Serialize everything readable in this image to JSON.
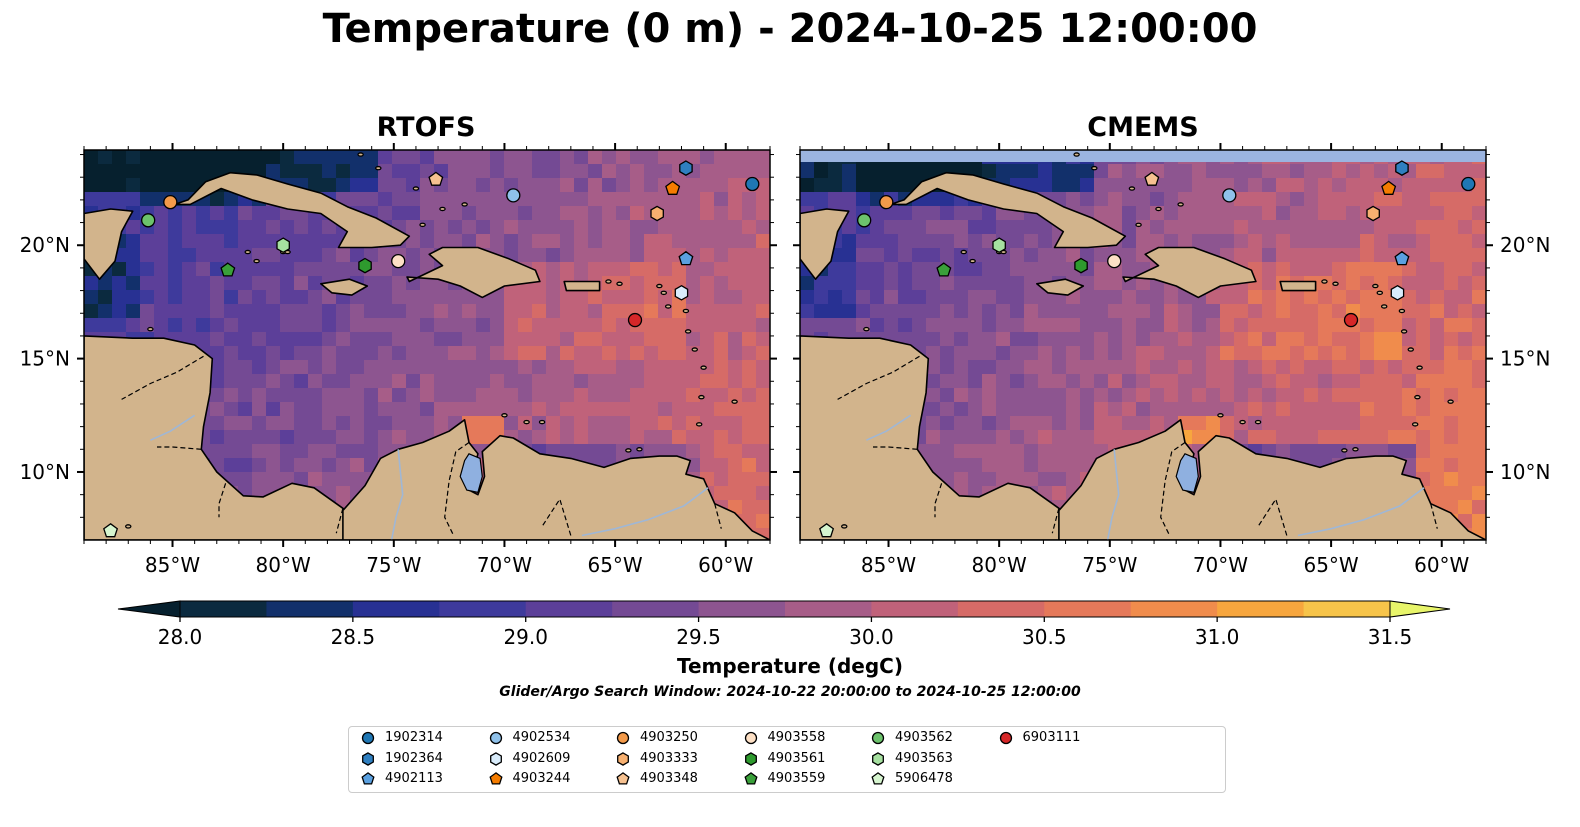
{
  "figure": {
    "title": "Temperature (0 m) - 2024-10-25 12:00:00",
    "search_window": "Glider/Argo Search Window: 2024-10-22 20:00:00 to 2024-10-25 12:00:00"
  },
  "panels": [
    {
      "title": "RTOFS",
      "lat_ticks_side": "left"
    },
    {
      "title": "CMEMS",
      "lat_ticks_side": "right"
    }
  ],
  "map_extent": {
    "lon": [
      -89,
      -58
    ],
    "lat": [
      7,
      24.2
    ]
  },
  "lon_ticks": [
    {
      "value": -85,
      "label": "85°W"
    },
    {
      "value": -80,
      "label": "80°W"
    },
    {
      "value": -75,
      "label": "75°W"
    },
    {
      "value": -70,
      "label": "70°W"
    },
    {
      "value": -65,
      "label": "65°W"
    },
    {
      "value": -60,
      "label": "60°W"
    }
  ],
  "lat_ticks": [
    {
      "value": 20,
      "label": "20°N"
    },
    {
      "value": 15,
      "label": "15°N"
    },
    {
      "value": 10,
      "label": "10°N"
    }
  ],
  "colorbar": {
    "label": "Temperature (degC)",
    "min": 28.0,
    "max": 31.5,
    "step": 0.25,
    "ticks": [
      "28.0",
      "28.5",
      "29.0",
      "29.5",
      "30.0",
      "30.5",
      "31.0",
      "31.5"
    ],
    "colors": [
      "#0b2a3f",
      "#12306b",
      "#283193",
      "#3e3a9c",
      "#5c3f99",
      "#744a94",
      "#8d5590",
      "#a75d88",
      "#c0627a",
      "#d66b67",
      "#e5795a",
      "#f08c4c",
      "#f7a63e",
      "#f7c44a"
    ],
    "under_color": "#06202e",
    "over_color": "#e8f56a"
  },
  "colors": {
    "land": "#d2b48c",
    "lake": "#8fb0e0",
    "river": "#9fb7d6",
    "cmems_nodata": "#9bb4e0"
  },
  "legend": {
    "items": [
      {
        "id": "1902314",
        "shape": "circle",
        "color": "#1f77b4"
      },
      {
        "id": "1902364",
        "shape": "hexagon",
        "color": "#2f7fc0"
      },
      {
        "id": "4902113",
        "shape": "pentagon",
        "color": "#5aa0e0"
      },
      {
        "id": "4902534",
        "shape": "circle",
        "color": "#8fc1ea"
      },
      {
        "id": "4902609",
        "shape": "hexagon",
        "color": "#d9ecfb"
      },
      {
        "id": "4903244",
        "shape": "pentagon",
        "color": "#f57c00"
      },
      {
        "id": "4903250",
        "shape": "circle",
        "color": "#f39a4a"
      },
      {
        "id": "4903333",
        "shape": "hexagon",
        "color": "#f7b070"
      },
      {
        "id": "4903348",
        "shape": "pentagon",
        "color": "#f6c190"
      },
      {
        "id": "4903558",
        "shape": "circle",
        "color": "#fde0c5"
      },
      {
        "id": "4903561",
        "shape": "hexagon",
        "color": "#2e9a2e"
      },
      {
        "id": "4903559",
        "shape": "pentagon",
        "color": "#3aa03a"
      },
      {
        "id": "4903562",
        "shape": "circle",
        "color": "#6cc26c"
      },
      {
        "id": "4903563",
        "shape": "hexagon",
        "color": "#a6e0a0"
      },
      {
        "id": "5906478",
        "shape": "pentagon",
        "color": "#d6f5cf"
      },
      {
        "id": "6903111",
        "shape": "circle",
        "color": "#d62728"
      }
    ]
  },
  "floats": [
    {
      "id": "1902314",
      "lon": -58.8,
      "lat": 22.7
    },
    {
      "id": "1902364",
      "lon": -61.8,
      "lat": 23.4
    },
    {
      "id": "4902113",
      "lon": -61.8,
      "lat": 19.4
    },
    {
      "id": "4902534",
      "lon": -69.6,
      "lat": 22.2
    },
    {
      "id": "4902609",
      "lon": -62.0,
      "lat": 17.9
    },
    {
      "id": "4903244",
      "lon": -62.4,
      "lat": 22.5
    },
    {
      "id": "4903250",
      "lon": -85.1,
      "lat": 21.9
    },
    {
      "id": "4903333",
      "lon": -63.1,
      "lat": 21.4
    },
    {
      "id": "4903348",
      "lon": -73.1,
      "lat": 22.9
    },
    {
      "id": "4903558",
      "lon": -74.8,
      "lat": 19.3
    },
    {
      "id": "4903561",
      "lon": -76.3,
      "lat": 19.1
    },
    {
      "id": "4903559",
      "lon": -82.5,
      "lat": 18.9
    },
    {
      "id": "4903562",
      "lon": -86.1,
      "lat": 21.1
    },
    {
      "id": "4903563",
      "lon": -80.0,
      "lat": 20.0
    },
    {
      "id": "5906478",
      "lon": -87.8,
      "lat": 7.4
    },
    {
      "id": "6903111",
      "lon": -64.1,
      "lat": 16.7
    }
  ]
}
